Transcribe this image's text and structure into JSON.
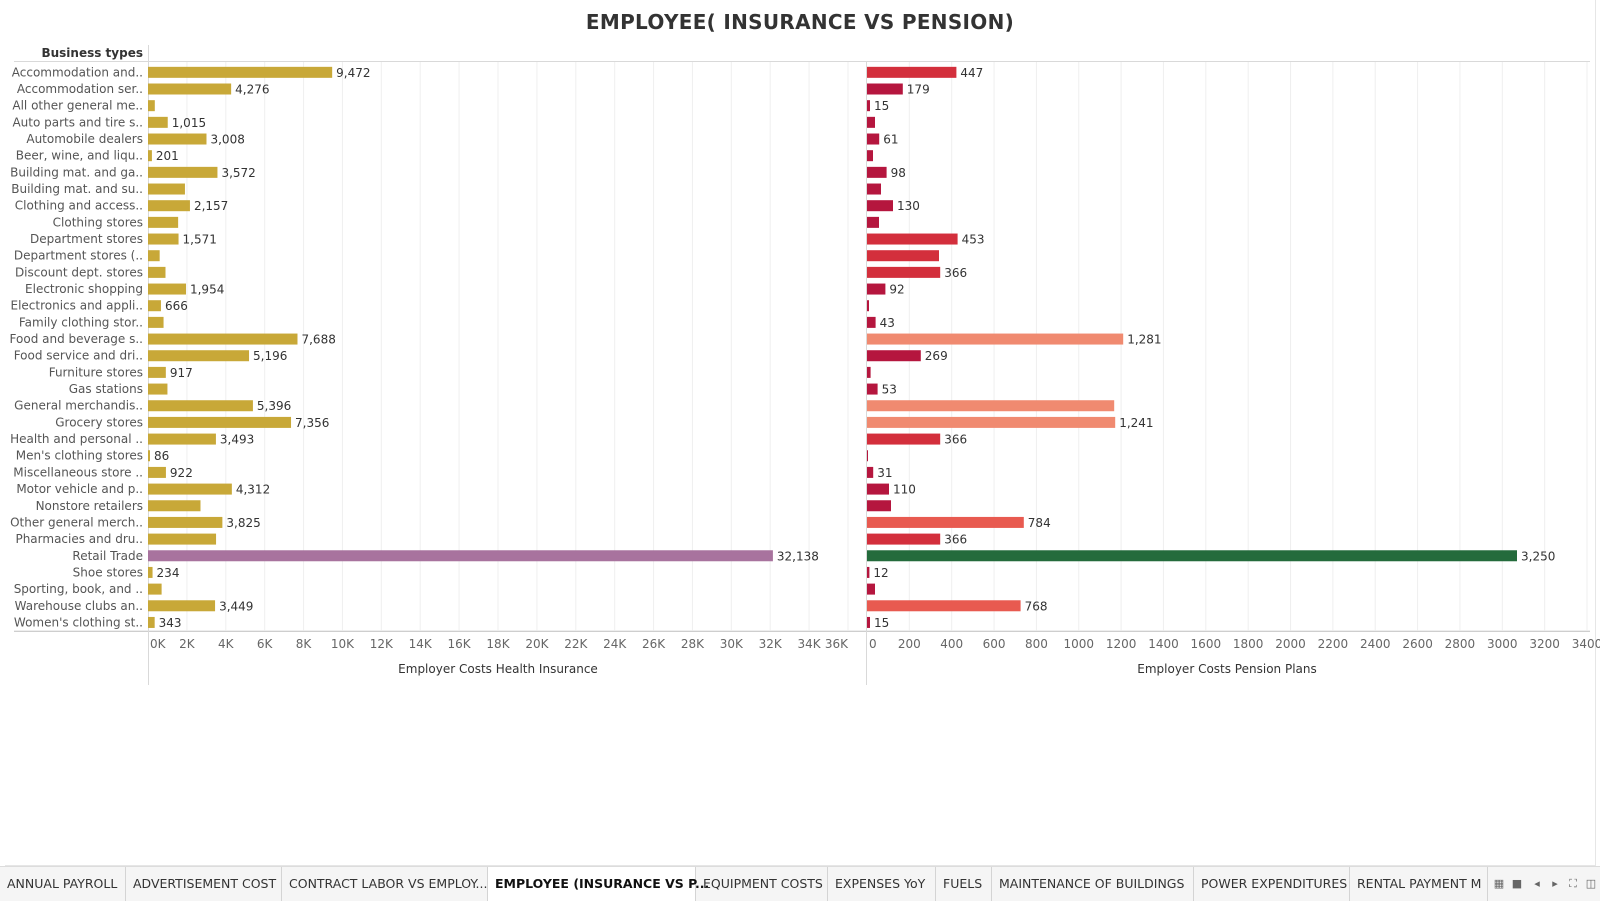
{
  "title": "EMPLOYEE( INSURANCE VS PENSION)",
  "chart_data": {
    "type": "bar",
    "orientation": "horizontal",
    "title": "EMPLOYEE( INSURANCE VS PENSION)",
    "row_header": "Business types",
    "categories": [
      "Accommodation and..",
      "Accommodation ser..",
      "All other general me..",
      "Auto parts and tire s..",
      "Automobile dealers",
      "Beer, wine, and liqu..",
      "Building mat. and ga..",
      "Building mat. and su..",
      "Clothing and access..",
      "Clothing stores",
      "Department stores",
      "Department stores (..",
      "Discount dept. stores",
      "Electronic shopping",
      "Electronics and appli..",
      "Family clothing stor..",
      "Food and beverage s..",
      "Food service and dri..",
      "Furniture stores",
      "Gas stations",
      "General merchandis..",
      "Grocery stores",
      "Health and personal ..",
      "Men's clothing stores",
      "Miscellaneous store ..",
      "Motor vehicle and p..",
      "Nonstore retailers",
      "Other general merch..",
      "Pharmacies and dru..",
      "Retail Trade",
      "Shoe stores",
      "Sporting, book, and ..",
      "Warehouse clubs an..",
      "Women's clothing st.."
    ],
    "series": [
      {
        "name": "Employer Costs Health Insurance",
        "xlabel": "Employer Costs Health Insurance",
        "xlim": [
          0,
          36000
        ],
        "ticks": [
          "0K",
          "2K",
          "4K",
          "6K",
          "8K",
          "10K",
          "12K",
          "14K",
          "16K",
          "18K",
          "20K",
          "22K",
          "24K",
          "26K",
          "28K",
          "30K",
          "32K",
          "34K",
          "36K"
        ],
        "values": [
          9472,
          4276,
          350,
          1015,
          3008,
          201,
          3572,
          1900,
          2157,
          1550,
          1571,
          600,
          900,
          1954,
          666,
          800,
          7688,
          5196,
          917,
          1000,
          5396,
          7356,
          3493,
          86,
          922,
          4312,
          2700,
          3825,
          3500,
          32138,
          234,
          700,
          3449,
          343
        ],
        "labels": [
          "9,472",
          "4,276",
          "",
          "1,015",
          "3,008",
          "201",
          "3,572",
          "",
          "2,157",
          "",
          "1,571",
          "",
          "",
          "1,954",
          "666",
          "",
          "7,688",
          "5,196",
          "917",
          "",
          "5,396",
          "7,356",
          "3,493",
          "86",
          "922",
          "4,312",
          "",
          "3,825",
          "",
          "32,138",
          "234",
          "",
          "3,449",
          "343"
        ],
        "colors": {
          "default": "#C8A838",
          "highlight": "#A8739E"
        }
      },
      {
        "name": "Employer Costs Pension Plans",
        "xlabel": "Employer Costs Pension Plans",
        "xlim": [
          0,
          3600
        ],
        "ticks": [
          "0",
          "200",
          "400",
          "600",
          "800",
          "1000",
          "1200",
          "1400",
          "1600",
          "1800",
          "2000",
          "2200",
          "2400",
          "2600",
          "2800",
          "3000",
          "3200",
          "3400"
        ],
        "values": [
          447,
          179,
          15,
          40,
          61,
          30,
          98,
          70,
          130,
          60,
          453,
          360,
          366,
          92,
          5,
          43,
          1281,
          269,
          18,
          53,
          1236,
          1241,
          366,
          0,
          31,
          110,
          120,
          784,
          366,
          3250,
          12,
          40,
          768,
          15
        ],
        "labels": [
          "447",
          "179",
          "15",
          "",
          "61",
          "",
          "98",
          "",
          "130",
          "",
          "453",
          "",
          "366",
          "92",
          "",
          "43",
          "1,281",
          "269",
          "",
          "53",
          "",
          "1,241",
          "366",
          "",
          "31",
          "110",
          "",
          "784",
          "366",
          "3,250",
          "12",
          "",
          "768",
          "15"
        ],
        "colors": {
          "low": "#B5163E",
          "mid": "#D32F3C",
          "high": "#E85A50",
          "top": "#F08A70",
          "max": "#246B3C"
        }
      }
    ],
    "grid": true,
    "legend": "none"
  },
  "tabs": [
    {
      "label": "ANNUAL PAYROLL",
      "active": false
    },
    {
      "label": "ADVERTISEMENT COST",
      "active": false
    },
    {
      "label": "CONTRACT LABOR VS EMPLOY...",
      "active": false
    },
    {
      "label": "EMPLOYEE (INSURANCE VS P...",
      "active": true
    },
    {
      "label": "EQUIPMENT COSTS",
      "active": false
    },
    {
      "label": "EXPENSES YoY",
      "active": false
    },
    {
      "label": "FUELS",
      "active": false
    },
    {
      "label": "MAINTENANCE OF BUILDINGS",
      "active": false
    },
    {
      "label": "POWER EXPENDITURES",
      "active": false
    },
    {
      "label": "RENTAL PAYMENT M",
      "active": false
    }
  ],
  "toolbar_icons": [
    "grid-view-icon",
    "filmstrip-icon",
    "previous-icon",
    "next-icon",
    "fullscreen-icon",
    "presentation-icon"
  ]
}
